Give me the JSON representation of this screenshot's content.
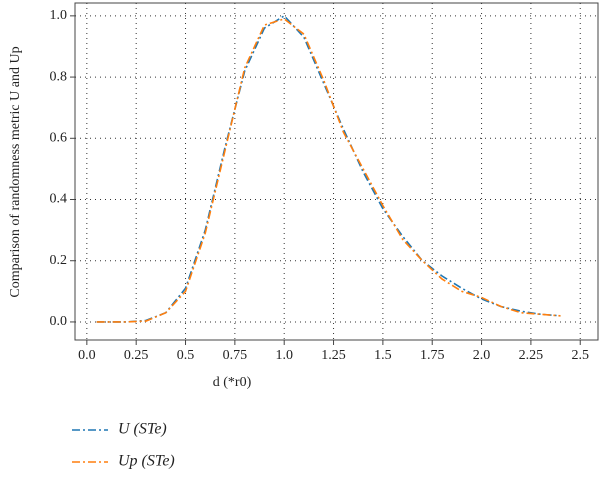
{
  "chart_data": {
    "type": "line",
    "xlabel": "d (*r0)",
    "ylabel": "Comparison of randomness metric U and Up",
    "x": [
      0.05,
      0.1,
      0.2,
      0.3,
      0.4,
      0.5,
      0.6,
      0.7,
      0.8,
      0.9,
      1.0,
      1.1,
      1.2,
      1.3,
      1.4,
      1.5,
      1.6,
      1.7,
      1.8,
      1.9,
      2.0,
      2.1,
      2.2,
      2.3,
      2.4
    ],
    "series": [
      {
        "name": "U (STe)",
        "color": "#1f77b4",
        "values": [
          0,
          0,
          0,
          0.005,
          0.03,
          0.11,
          0.3,
          0.57,
          0.82,
          0.96,
          1.0,
          0.93,
          0.78,
          0.63,
          0.49,
          0.37,
          0.28,
          0.2,
          0.15,
          0.11,
          0.075,
          0.05,
          0.035,
          0.025,
          0.02
        ]
      },
      {
        "name": "Up (STe)",
        "color": "#ff7f0e",
        "values": [
          0,
          0,
          0,
          0.003,
          0.03,
          0.1,
          0.29,
          0.56,
          0.83,
          0.97,
          0.99,
          0.94,
          0.79,
          0.62,
          0.5,
          0.38,
          0.27,
          0.2,
          0.14,
          0.1,
          0.08,
          0.05,
          0.03,
          0.025,
          0.02
        ]
      }
    ],
    "xlim": [
      -0.06,
      2.59
    ],
    "ylim": [
      -0.059,
      1.042
    ],
    "xticks": [
      {
        "value": 0,
        "label": "0.0"
      },
      0.25,
      0.5,
      0.75,
      {
        "value": 1,
        "label": "1.0"
      },
      1.25,
      1.5,
      1.75,
      {
        "value": 2,
        "label": "2.0"
      },
      2.25,
      2.5
    ],
    "yticks": [
      {
        "value": 0,
        "label": "0.0"
      },
      0.2,
      0.4,
      0.6,
      0.8,
      {
        "value": 1,
        "label": "1.0"
      }
    ],
    "grid": true
  }
}
